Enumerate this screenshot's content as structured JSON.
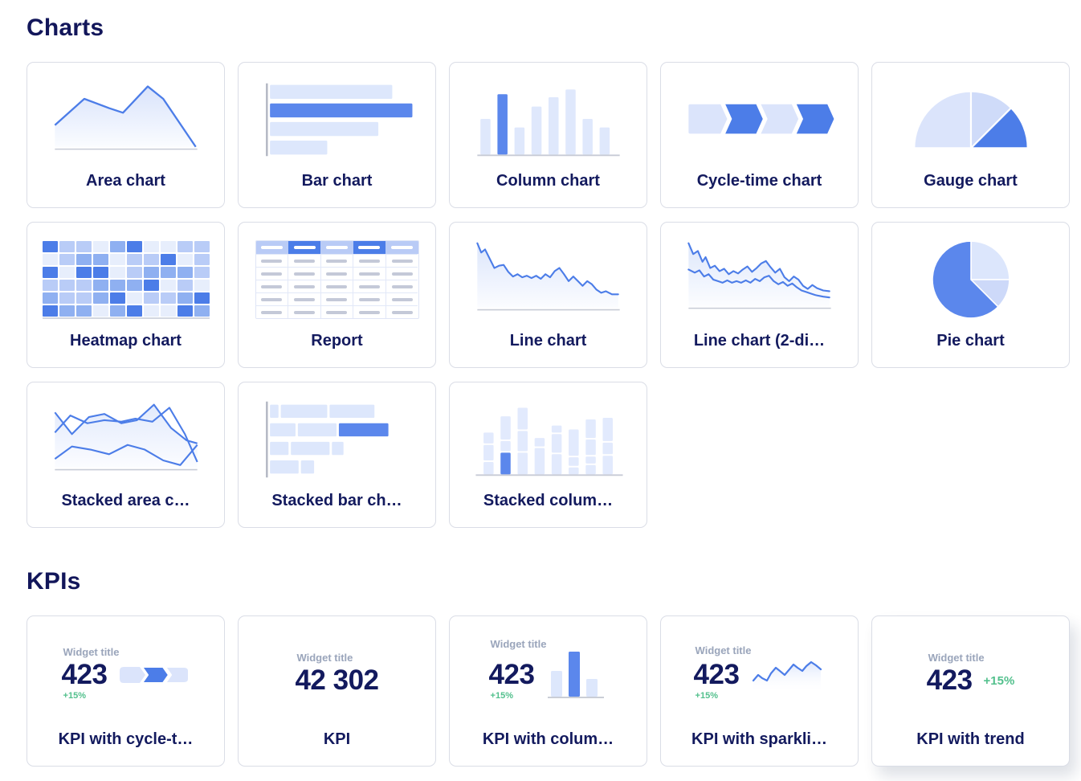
{
  "colors": {
    "accent_blue": "#4c7de8",
    "bar_blue": "#5b87ec",
    "light_blue_fill": "#dde7fc",
    "navy_text": "#131a5e",
    "muted_gray_text": "#9aa5bb",
    "positive_green": "#53c08d",
    "card_border": "#dadde6",
    "axis_gray": "#b4b8c4",
    "baseline_gray": "#c7cbd6"
  },
  "sections": {
    "charts": {
      "title": "Charts",
      "items": [
        {
          "label": "Area chart",
          "icon": "area-chart-icon"
        },
        {
          "label": "Bar chart",
          "icon": "bar-chart-icon"
        },
        {
          "label": "Column chart",
          "icon": "column-chart-icon"
        },
        {
          "label": "Cycle-time chart",
          "icon": "cycle-time-chart-icon"
        },
        {
          "label": "Gauge chart",
          "icon": "gauge-chart-icon"
        },
        {
          "label": "Heatmap chart",
          "icon": "heatmap-chart-icon"
        },
        {
          "label": "Report",
          "icon": "report-table-icon"
        },
        {
          "label": "Line chart",
          "icon": "line-chart-icon"
        },
        {
          "label": "Line chart (2-di…",
          "icon": "line-chart-2dim-icon"
        },
        {
          "label": "Pie chart",
          "icon": "pie-chart-icon"
        },
        {
          "label": "Stacked area c…",
          "icon": "stacked-area-chart-icon"
        },
        {
          "label": "Stacked bar ch…",
          "icon": "stacked-bar-chart-icon"
        },
        {
          "label": "Stacked colum…",
          "icon": "stacked-column-chart-icon"
        }
      ]
    },
    "kpis": {
      "title": "KPIs",
      "widget_title": "Widget title",
      "items": [
        {
          "label": "KPI with cycle-t…",
          "value": "423",
          "delta": "+15%",
          "icon": "cycle-time-mini-icon"
        },
        {
          "label": "KPI",
          "value": "42 302"
        },
        {
          "label": "KPI with colum…",
          "value": "423",
          "delta": "+15%",
          "icon": "column-mini-icon"
        },
        {
          "label": "KPI with sparkli…",
          "value": "423",
          "delta": "+15%",
          "icon": "sparkline-mini-icon"
        },
        {
          "label": "KPI with trend",
          "value": "423",
          "delta": "+15%"
        }
      ]
    }
  },
  "heatmap": {
    "palette": [
      "#e7eefc",
      "#b9ccf7",
      "#8fb0f1",
      "#4c7de8"
    ],
    "matrix": [
      [
        3,
        1,
        1,
        0,
        2,
        3,
        0,
        0,
        1,
        1
      ],
      [
        0,
        1,
        2,
        2,
        0,
        1,
        1,
        3,
        0,
        1
      ],
      [
        3,
        0,
        3,
        3,
        0,
        1,
        2,
        2,
        2,
        1
      ],
      [
        1,
        1,
        1,
        2,
        2,
        2,
        3,
        0,
        1,
        0
      ],
      [
        2,
        1,
        1,
        2,
        3,
        0,
        1,
        1,
        2,
        3
      ],
      [
        3,
        2,
        2,
        0,
        2,
        3,
        0,
        0,
        3,
        2
      ]
    ]
  }
}
